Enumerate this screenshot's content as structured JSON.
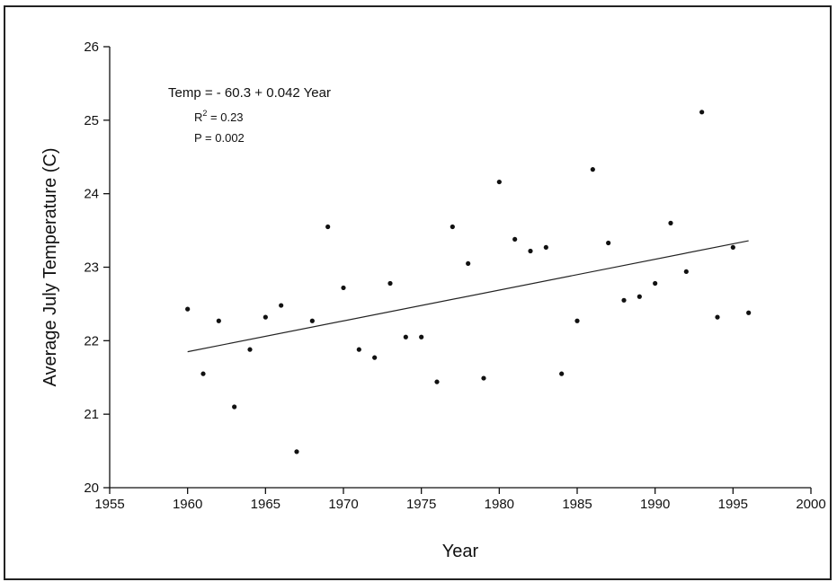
{
  "chart_data": {
    "type": "scatter",
    "title": "",
    "xlabel": "Year",
    "ylabel": "Average July Temperature (C)",
    "xlim": [
      1955,
      2000
    ],
    "ylim": [
      20,
      26
    ],
    "xticks": [
      1955,
      1960,
      1965,
      1970,
      1975,
      1980,
      1985,
      1990,
      1995,
      2000
    ],
    "yticks": [
      20,
      21,
      22,
      23,
      24,
      25,
      26
    ],
    "grid": false,
    "series": [
      {
        "x": [
          1960,
          1961,
          1962,
          1963,
          1964,
          1965,
          1966,
          1967,
          1968,
          1969,
          1970,
          1971,
          1972,
          1973,
          1974,
          1975,
          1976,
          1977,
          1978,
          1979,
          1980,
          1981,
          1982,
          1983,
          1984,
          1985,
          1986,
          1987,
          1988,
          1989,
          1990,
          1991,
          1992,
          1993,
          1994,
          1995,
          1996
        ],
        "y": [
          22.43,
          21.55,
          22.27,
          21.1,
          21.88,
          22.32,
          22.48,
          20.49,
          22.27,
          23.55,
          22.72,
          21.88,
          21.77,
          22.78,
          22.05,
          22.05,
          21.44,
          23.55,
          23.05,
          21.49,
          24.16,
          23.38,
          23.22,
          23.27,
          21.55,
          22.27,
          24.33,
          23.33,
          22.55,
          22.6,
          22.78,
          23.6,
          22.94,
          25.11,
          22.32,
          23.27,
          22.38
        ]
      }
    ],
    "trendline": {
      "x": [
        1960,
        1996
      ],
      "y": [
        21.85,
        23.36
      ]
    },
    "annotation": {
      "equation": "Temp =  - 60.3 + 0.042 Year",
      "r2_label": "R",
      "r2_sup": "2",
      "r2_value": " = 0.23",
      "p_value": "P = 0.002"
    }
  }
}
